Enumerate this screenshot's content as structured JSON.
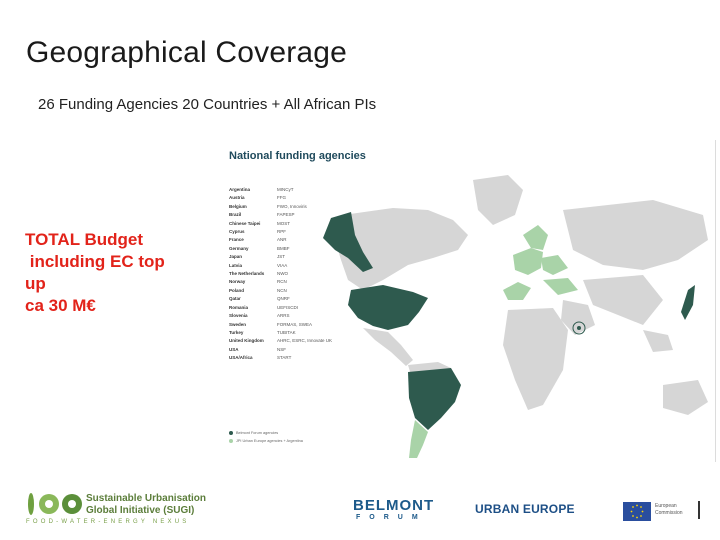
{
  "slide": {
    "title": "Geographical Coverage",
    "subtitle": "26 Funding Agencies 20 Countries +  All African PIs",
    "budget_text": "TOTAL Budget\n including EC top\nup\nca 30 M€"
  },
  "map": {
    "title": "National funding agencies",
    "agencies": [
      {
        "country": "Argentina",
        "agency": "MINCyT"
      },
      {
        "country": "Austria",
        "agency": "FFG"
      },
      {
        "country": "Belgium",
        "agency": "FWO, Innoviris"
      },
      {
        "country": "Brazil",
        "agency": "FAPESP"
      },
      {
        "country": "Chinese Taipei",
        "agency": "MOST"
      },
      {
        "country": "Cyprus",
        "agency": "RPF"
      },
      {
        "country": "France",
        "agency": "ANR"
      },
      {
        "country": "Germany",
        "agency": "BMBF"
      },
      {
        "country": "Japan",
        "agency": "JST"
      },
      {
        "country": "Latvia",
        "agency": "VIAA"
      },
      {
        "country": "The Netherlands",
        "agency": "NWO"
      },
      {
        "country": "Norway",
        "agency": "RCN"
      },
      {
        "country": "Poland",
        "agency": "NCN"
      },
      {
        "country": "Qatar",
        "agency": "QNRF"
      },
      {
        "country": "Romania",
        "agency": "UEFISCDI"
      },
      {
        "country": "Slovenia",
        "agency": "ARRS"
      },
      {
        "country": "Sweden",
        "agency": "FORMAS, SWEA"
      },
      {
        "country": "Turkey",
        "agency": "TUBITAK"
      },
      {
        "country": "United Kingdom",
        "agency": "AHRC, ESRC, Innovate UK"
      },
      {
        "country": "USA",
        "agency": "NSF"
      },
      {
        "country": "USA/Africa",
        "agency": "START"
      }
    ],
    "legend": [
      {
        "label": "Belmont Forum agencies",
        "color": "#2e5a4e"
      },
      {
        "label": "JPI Urban Europe agencies + Argentina",
        "color": "#a9d3a8"
      }
    ],
    "colors": {
      "belmont": "#2e5a4e",
      "jpi": "#a9d3a8",
      "land": "#d6d6d6"
    }
  },
  "footer": {
    "sugi_line1": "Sustainable Urbanisation",
    "sugi_line2": "Global Initiative  (SUGI)",
    "sugi_tagline": "FOOD-WATER-ENERGY NEXUS",
    "belmont": "BELMONT",
    "belmont_sub": "FORUM",
    "urban_europe": "URBAN EUROPE",
    "eu_line1": "European",
    "eu_line2": "Commission"
  }
}
